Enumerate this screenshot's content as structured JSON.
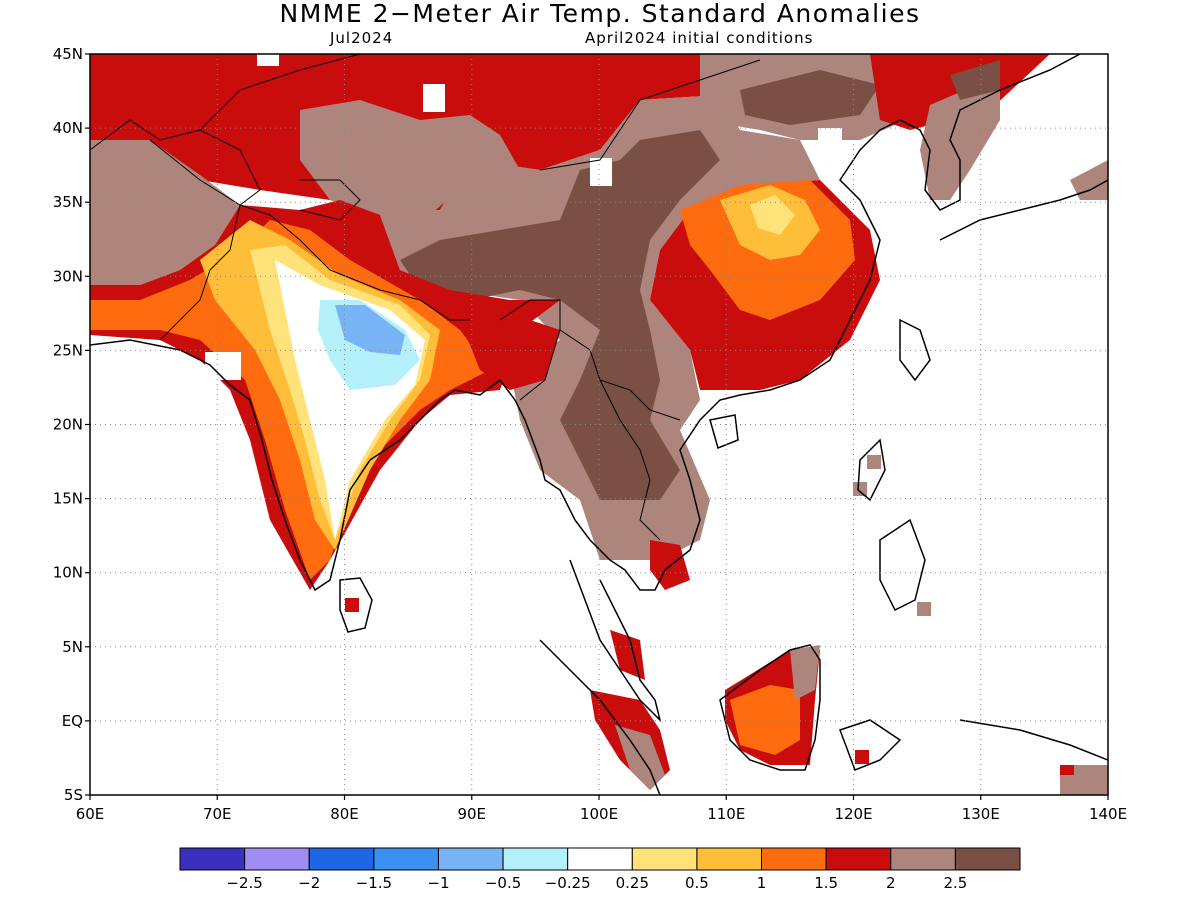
{
  "title": "NMME 2−Meter Air Temp. Standard Anomalies",
  "subtitle_left": "Jul2024",
  "subtitle_right": "April2024 initial conditions",
  "map": {
    "lon_range": [
      60,
      140
    ],
    "lat_range": [
      -5,
      45
    ],
    "lat_labels": [
      "45N",
      "40N",
      "35N",
      "30N",
      "25N",
      "20N",
      "15N",
      "10N",
      "5N",
      "EQ",
      "5S"
    ],
    "lon_labels": [
      "60E",
      "70E",
      "80E",
      "90E",
      "100E",
      "110E",
      "120E",
      "130E",
      "140E"
    ],
    "grid": "dotted"
  },
  "colorbar": {
    "colors": [
      "#3a2fbe",
      "#9f8cf5",
      "#1f66e5",
      "#3b8ff0",
      "#78b4f5",
      "#b4f0fa",
      "#ffffff",
      "#ffe27a",
      "#ffbe3a",
      "#ff6b0f",
      "#c90c0c",
      "#ad857d",
      "#7a5045"
    ],
    "labels": [
      "−2.5",
      "−2",
      "−1.5",
      "−1",
      "−0.5",
      "−0.25",
      "0.25",
      "0.5",
      "1",
      "1.5",
      "2",
      "2.5"
    ]
  },
  "colors": {
    "dark_red": "#c90c0c",
    "light_brown": "#ad857d",
    "dark_brown": "#7a5045",
    "orange": "#ff6b0f",
    "light_orange": "#ffbe3a",
    "yellow": "#ffe27a",
    "light_blue": "#b4f0fa",
    "blue": "#78b4f5"
  }
}
